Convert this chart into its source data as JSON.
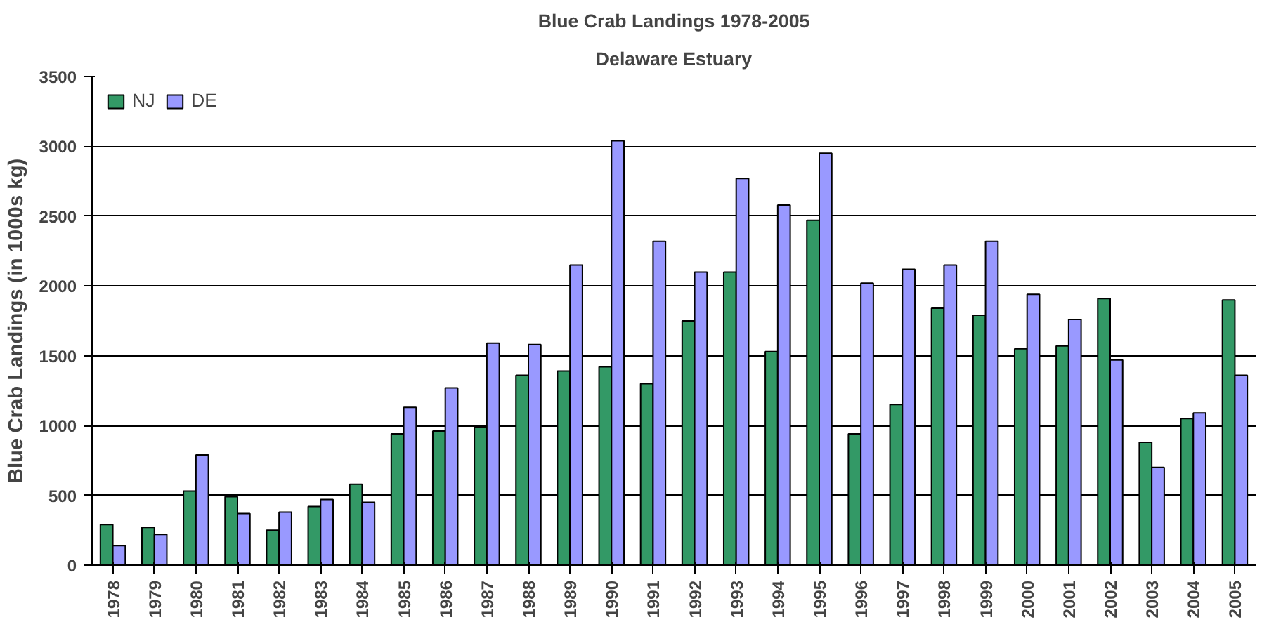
{
  "chart_data": {
    "type": "bar",
    "title": "Blue Crab Landings 1978-2005",
    "subtitle": "Delaware Estuary",
    "ylabel": "Blue Crab Landings (in 1000s kg)",
    "categories": [
      "1978",
      "1979",
      "1980",
      "1981",
      "1982",
      "1983",
      "1984",
      "1985",
      "1986",
      "1987",
      "1988",
      "1989",
      "1990",
      "1991",
      "1992",
      "1993",
      "1994",
      "1995",
      "1996",
      "1997",
      "1998",
      "1999",
      "2000",
      "2001",
      "2002",
      "2003",
      "2004",
      "2005"
    ],
    "series": [
      {
        "name": "NJ",
        "color": "#339966",
        "values": [
          290,
          270,
          530,
          490,
          250,
          420,
          580,
          940,
          960,
          990,
          1360,
          1390,
          1420,
          1300,
          1750,
          2100,
          1530,
          2470,
          940,
          1150,
          1840,
          1790,
          1550,
          1570,
          1910,
          880,
          1050,
          1900
        ]
      },
      {
        "name": "DE",
        "color": "#9999ff",
        "values": [
          140,
          220,
          790,
          370,
          380,
          470,
          450,
          1130,
          1270,
          1590,
          1580,
          2150,
          3040,
          2320,
          2100,
          2770,
          2580,
          2950,
          2020,
          2120,
          2150,
          2320,
          1940,
          1760,
          1470,
          700,
          1090,
          1360
        ]
      }
    ],
    "ylim": [
      0,
      3500
    ],
    "yticks": [
      0,
      500,
      1000,
      1500,
      2000,
      2500,
      3000,
      3500
    ],
    "grid": "y",
    "legend": "top left"
  }
}
